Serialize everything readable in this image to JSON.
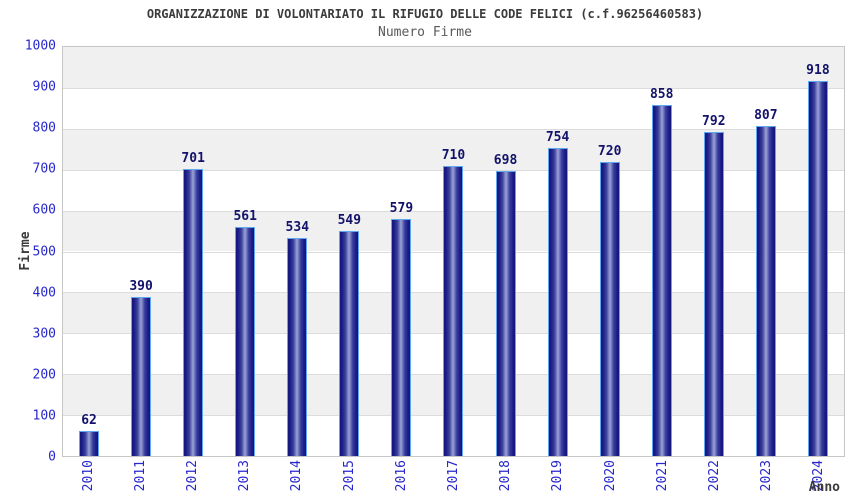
{
  "chart_data": {
    "type": "bar",
    "title": "ORGANIZZAZIONE DI VOLONTARIATO IL RIFUGIO DELLE CODE FELICI (c.f.96256460583)",
    "subtitle": "Numero Firme",
    "xlabel": "Anno",
    "ylabel": "Firme",
    "categories": [
      "2010",
      "2011",
      "2012",
      "2013",
      "2014",
      "2015",
      "2016",
      "2017",
      "2018",
      "2019",
      "2020",
      "2021",
      "2022",
      "2023",
      "2024"
    ],
    "values": [
      62,
      390,
      701,
      561,
      534,
      549,
      579,
      710,
      698,
      754,
      720,
      858,
      792,
      807,
      918
    ],
    "ylim": [
      0,
      1000
    ],
    "ytick_step": 100,
    "grid": "horizontal-bands-alternating",
    "legend_position": "none",
    "colors": {
      "bar_edge_dark": "#14147a",
      "bar_center_light": "#9ba3d6",
      "bar_border": "#5fa8ef",
      "value_label": "#12126b",
      "axis_tick_label": "#2727cd",
      "axis_title": "#3b3b3b",
      "title": "#3b3b3b",
      "subtitle": "#5a5a5a",
      "band_gray": "#f0f0f0",
      "band_white": "#ffffff",
      "gridline": "#dcdcdc",
      "plot_border": "#c6c6c6",
      "background": "#ffffff"
    }
  }
}
